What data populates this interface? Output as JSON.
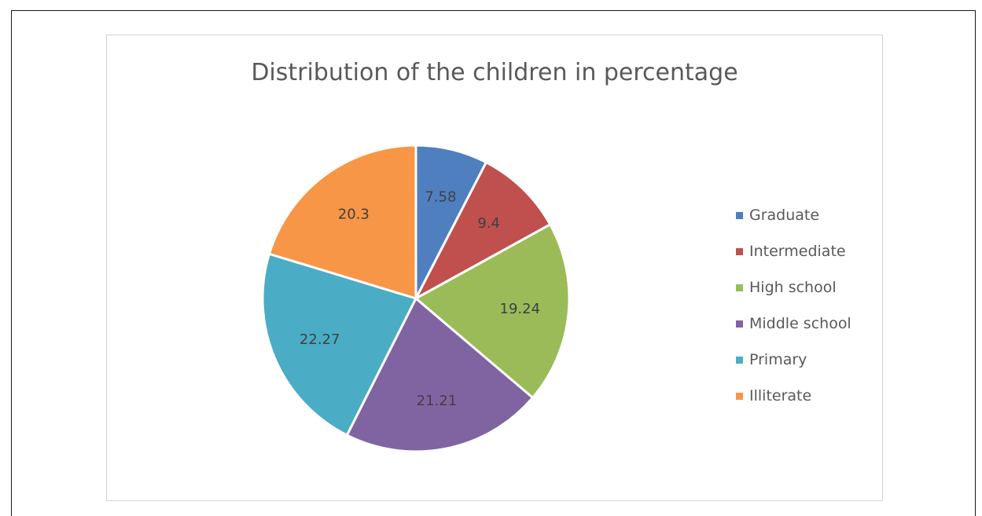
{
  "chart_data": {
    "type": "pie",
    "title": "Distribution of the children in percentage",
    "categories": [
      "Graduate",
      "Intermediate",
      "High school",
      "Middle school",
      "Primary",
      "Illiterate"
    ],
    "values": [
      7.58,
      9.4,
      19.24,
      21.21,
      22.27,
      20.3
    ],
    "data_labels": [
      "7.58",
      "9.4",
      "19.24",
      "21.21",
      "22.27",
      "20.3"
    ],
    "colors": [
      "#4f7fbf",
      "#c0504d",
      "#9bbb59",
      "#8064a2",
      "#4bacc6",
      "#f79646"
    ],
    "legend_position": "right"
  }
}
